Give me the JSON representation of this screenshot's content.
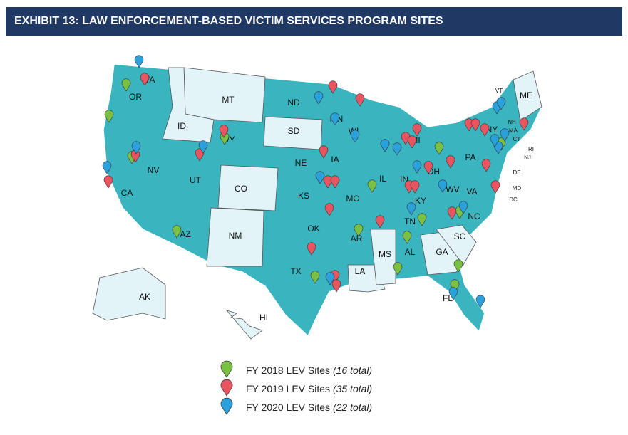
{
  "header": {
    "title": "EXHIBIT 13: LAW ENFORCEMENT-BASED VICTIM SERVICES PROGRAM SITES"
  },
  "map": {
    "states": [
      "WA",
      "OR",
      "CA",
      "NV",
      "ID",
      "MT",
      "WY",
      "UT",
      "AZ",
      "CO",
      "NM",
      "ND",
      "SD",
      "NE",
      "KS",
      "OK",
      "TX",
      "MN",
      "IA",
      "MO",
      "AR",
      "LA",
      "WI",
      "IL",
      "MS",
      "MI",
      "IN",
      "KY",
      "TN",
      "AL",
      "OH",
      "GA",
      "FL",
      "SC",
      "NC",
      "VA",
      "WV",
      "PA",
      "NY",
      "VT",
      "NH",
      "ME",
      "MA",
      "CT",
      "RI",
      "NJ",
      "DE",
      "MD",
      "DC",
      "AK",
      "HI"
    ]
  },
  "legend": {
    "items": [
      {
        "label": "FY 2018 LEV Sites",
        "note": "(16 total)",
        "color": "#7ac143"
      },
      {
        "label": "FY 2019 LEV Sites",
        "note": "(35 total)",
        "color": "#e8545f"
      },
      {
        "label": "FY 2020 LEV Sites",
        "note": "(22 total)",
        "color": "#2aa0dc"
      }
    ]
  }
}
